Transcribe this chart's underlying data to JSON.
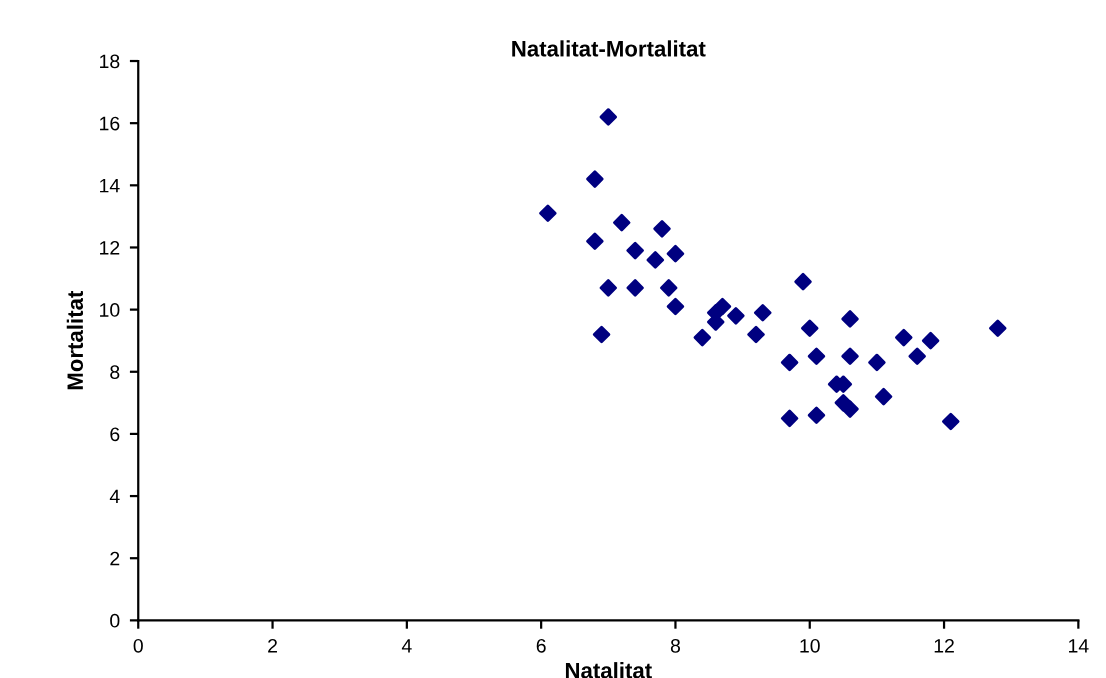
{
  "chart_data": {
    "type": "scatter",
    "title": "Natalitat-Mortalitat",
    "xlabel": "Natalitat",
    "ylabel": "Mortalitat",
    "series": [
      {
        "color": "#000080",
        "x": [
          7.0,
          6.8,
          6.1,
          7.2,
          6.8,
          7.8,
          7.4,
          7.7,
          8.0,
          7.0,
          7.4,
          7.9,
          8.0,
          6.9,
          9.9,
          8.7,
          8.6,
          8.9,
          9.3,
          8.6,
          8.4,
          9.2,
          10.0,
          10.6,
          9.7,
          10.1,
          10.6,
          11.0,
          11.4,
          11.8,
          11.6,
          12.8,
          10.4,
          10.5,
          11.1,
          10.5,
          10.6,
          9.7,
          10.1,
          12.1
        ],
        "values": [
          16.2,
          14.2,
          13.1,
          12.8,
          12.2,
          12.6,
          11.9,
          11.6,
          11.8,
          10.7,
          10.7,
          10.7,
          10.1,
          9.2,
          10.9,
          10.1,
          9.9,
          9.8,
          9.9,
          9.6,
          9.1,
          9.2,
          9.4,
          9.7,
          8.3,
          8.5,
          8.5,
          8.3,
          9.1,
          9.0,
          8.5,
          9.4,
          7.6,
          7.6,
          7.2,
          7.0,
          6.8,
          6.5,
          6.6,
          6.4
        ]
      }
    ],
    "xlim": [
      0,
      14
    ],
    "xticks": [
      0,
      2,
      4,
      6,
      8,
      10,
      12,
      14
    ],
    "ylim": [
      0,
      18
    ],
    "yticks": [
      0,
      2,
      4,
      6,
      8,
      10,
      12,
      14,
      16,
      18
    ],
    "marker": "diamond",
    "grid": false,
    "legend": false
  }
}
